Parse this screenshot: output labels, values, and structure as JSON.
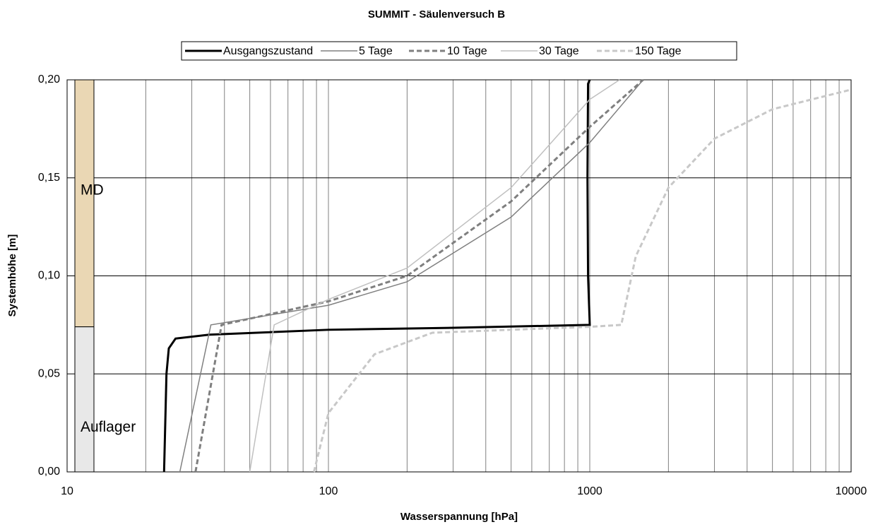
{
  "chart_data": {
    "type": "line",
    "title": "SUMMIT - Säulenversuch B",
    "x_label": "Wasserspannung [hPa]",
    "y_label": "Systemhöhe [m]",
    "xscale": "log",
    "xlim": [
      10,
      10000
    ],
    "xticks": [
      10,
      100,
      1000,
      10000
    ],
    "x_minor_grid": [
      20,
      30,
      40,
      50,
      60,
      70,
      80,
      90,
      200,
      300,
      400,
      500,
      600,
      700,
      800,
      900,
      2000,
      3000,
      4000,
      5000,
      6000,
      7000,
      8000,
      9000
    ],
    "ylim": [
      0,
      0.2
    ],
    "yticks": [
      {
        "value": 0,
        "label": "0,00"
      },
      {
        "value": 0.05,
        "label": "0,05"
      },
      {
        "value": 0.1,
        "label": "0,10"
      },
      {
        "value": 0.15,
        "label": "0,15"
      },
      {
        "value": 0.2,
        "label": "0,20"
      }
    ],
    "grid": true,
    "legend": "top",
    "layers": [
      {
        "label": "MD",
        "bottom": 0.074,
        "top": 0.2,
        "color": "#ead7b4"
      },
      {
        "label": "Auflager",
        "bottom": 0,
        "top": 0.074,
        "color": "#e8e8e8"
      }
    ],
    "series": [
      {
        "name": "Ausgangszustand",
        "color": "#000000",
        "dash": "solid",
        "width": 3,
        "x": [
          23.5,
          24,
          24.5,
          26,
          35,
          100,
          300,
          1000,
          985,
          980,
          985,
          1000
        ],
        "values": [
          0,
          0.05,
          0.063,
          0.068,
          0.07,
          0.0725,
          0.0735,
          0.075,
          0.1,
          0.15,
          0.198,
          0.2
        ]
      },
      {
        "name": "5 Tage",
        "color": "#808080",
        "dash": "solid",
        "width": 1.5,
        "x": [
          27,
          35.5,
          100,
          200,
          500,
          1000,
          1600
        ],
        "values": [
          0,
          0.075,
          0.085,
          0.097,
          0.13,
          0.168,
          0.2
        ]
      },
      {
        "name": "10 Tage",
        "color": "#7f7f7f",
        "dash": "dashed",
        "width": 3,
        "x": [
          31,
          39,
          100,
          200,
          500,
          1000,
          1600
        ],
        "values": [
          0,
          0.075,
          0.087,
          0.1,
          0.138,
          0.176,
          0.2
        ]
      },
      {
        "name": "30 Tage",
        "color": "#c0c0c0",
        "dash": "solid",
        "width": 1.5,
        "x": [
          50,
          62,
          100,
          200,
          500,
          1000,
          1300
        ],
        "values": [
          0,
          0.075,
          0.088,
          0.104,
          0.145,
          0.19,
          0.2
        ]
      },
      {
        "name": "150 Tage",
        "color": "#c8c8c8",
        "dash": "dashed",
        "width": 3,
        "x": [
          88,
          100,
          150,
          250,
          1000,
          1320,
          1500,
          2000,
          3000,
          5000,
          10000
        ],
        "values": [
          0,
          0.03,
          0.06,
          0.071,
          0.074,
          0.075,
          0.11,
          0.145,
          0.17,
          0.185,
          0.195
        ]
      }
    ]
  }
}
